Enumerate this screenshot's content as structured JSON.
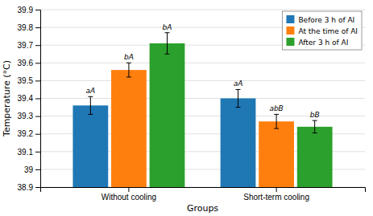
{
  "chart_data": {
    "type": "bar",
    "categories": [
      "Without cooling",
      "Short-term cooling"
    ],
    "series": [
      {
        "name": "Before 3 h of AI",
        "values": [
          39.36,
          39.4
        ],
        "errors": [
          0.05,
          0.05
        ],
        "annotations": [
          "aA",
          "aA"
        ]
      },
      {
        "name": "At the time of AI",
        "values": [
          39.56,
          39.27
        ],
        "errors": [
          0.04,
          0.04
        ],
        "annotations": [
          "bA",
          "abB"
        ]
      },
      {
        "name": "After 3 h of AI",
        "values": [
          39.71,
          39.24
        ],
        "errors": [
          0.06,
          0.035
        ],
        "annotations": [
          "bA",
          "bB"
        ]
      }
    ],
    "xlabel": "Groups",
    "ylabel": "Temperature (°C)",
    "ylim": [
      38.9,
      39.9
    ],
    "yticks": [
      38.9,
      39,
      39.1,
      39.2,
      39.3,
      39.4,
      39.5,
      39.6,
      39.7,
      39.8,
      39.9
    ],
    "grid": true,
    "legend": "upper right"
  }
}
